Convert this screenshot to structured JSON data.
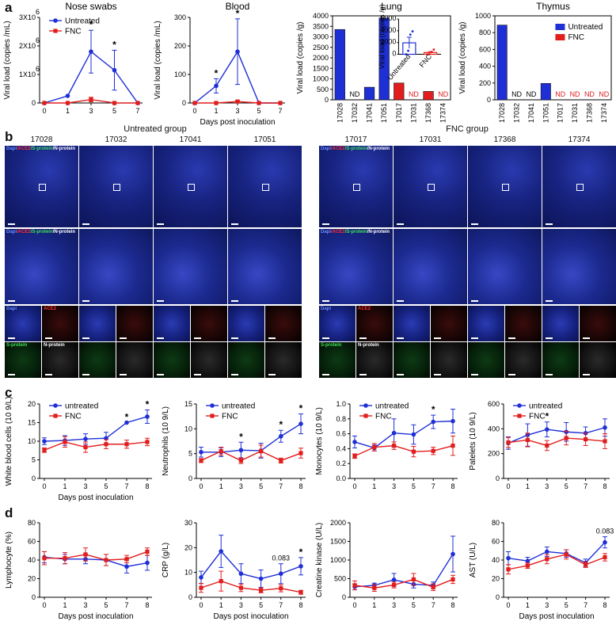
{
  "panels": {
    "a": "a",
    "b": "b",
    "c": "c",
    "d": "d"
  },
  "colors": {
    "untreated": "#1f2fd6",
    "fnc": "#e11d1d"
  },
  "chart_data": [
    {
      "id": "nose",
      "type": "line",
      "title": "Nose swabs",
      "ylabel": "Viral load (copies /mL)",
      "xlabel": "Days post inoculation",
      "x": [
        0,
        1,
        3,
        5,
        7
      ],
      "ylim": [
        0,
        3000000
      ],
      "yticks": [
        0,
        1000000,
        2000000,
        3000000
      ],
      "ytick_labels": [
        "0",
        "1X10",
        "2X10",
        "3X10"
      ],
      "ytick_exp": "6",
      "show_xlabel": false,
      "series": [
        {
          "name": "Untreated",
          "color": "#1f2fd6",
          "marker": "circle",
          "values": [
            0,
            250000,
            1800000,
            1150000,
            0
          ],
          "err": [
            0,
            0,
            750000,
            700000,
            0
          ]
        },
        {
          "name": "FNC",
          "color": "#e11d1d",
          "marker": "square",
          "values": [
            0,
            0,
            120000,
            0,
            0
          ],
          "err": [
            0,
            0,
            80000,
            0,
            0
          ]
        }
      ],
      "stars": [
        3,
        5
      ],
      "legend": [
        "Untreated",
        "FNC"
      ]
    },
    {
      "id": "blood",
      "type": "line",
      "title": "Blood",
      "ylabel": "Viral load (copies /mL)",
      "xlabel": "Days post inoculation",
      "x": [
        0,
        1,
        3,
        5,
        7
      ],
      "ylim": [
        0,
        300
      ],
      "yticks": [
        0,
        100,
        200,
        300
      ],
      "ytick_labels": [
        "0",
        "100",
        "200",
        "300"
      ],
      "show_xlabel": true,
      "series": [
        {
          "name": "Untreated",
          "color": "#1f2fd6",
          "marker": "circle",
          "values": [
            0,
            60,
            180,
            0,
            0
          ],
          "err": [
            0,
            25,
            115,
            0,
            0
          ]
        },
        {
          "name": "FNC",
          "color": "#e11d1d",
          "marker": "square",
          "values": [
            0,
            0,
            5,
            0,
            0
          ],
          "err": [
            0,
            0,
            4,
            0,
            0
          ]
        }
      ],
      "stars": [
        1,
        3
      ]
    },
    {
      "id": "lung",
      "type": "bar",
      "title": "Lung",
      "ylabel": "Viral load (copies /g)",
      "categories": [
        "17028",
        "17032",
        "17041",
        "17051",
        "17017",
        "17031",
        "17368",
        "17374"
      ],
      "values": [
        3350,
        0,
        600,
        3900,
        800,
        0,
        400,
        0
      ],
      "nd": [
        false,
        true,
        false,
        false,
        false,
        true,
        false,
        true
      ],
      "nd_label": "ND",
      "group": [
        "u",
        "u",
        "u",
        "u",
        "f",
        "f",
        "f",
        "f"
      ],
      "ylim": [
        0,
        4000
      ],
      "yticks": [
        0,
        500,
        1000,
        1500,
        2000,
        2500,
        3000,
        3500,
        4000
      ],
      "inset": {
        "ylabel": "Viral load (copies /g)",
        "categories": [
          "Untreated",
          "FNC"
        ],
        "values": [
          1950,
          300
        ],
        "err": [
          950,
          150
        ],
        "ylim": [
          0,
          6000
        ],
        "yticks": [
          0,
          2000,
          4000,
          6000
        ],
        "points_u": [
          0,
          600,
          3350,
          3900
        ],
        "points_f": [
          0,
          0,
          400,
          800
        ]
      }
    },
    {
      "id": "thymus",
      "type": "bar",
      "title": "Thymus",
      "ylabel": "Viral load (copies /g)",
      "categories": [
        "17028",
        "17032",
        "17041",
        "17051",
        "17017",
        "17031",
        "17368",
        "17374"
      ],
      "values": [
        890,
        0,
        0,
        195,
        0,
        0,
        0,
        0
      ],
      "nd": [
        false,
        true,
        true,
        false,
        true,
        true,
        true,
        true
      ],
      "nd_label": "ND",
      "group": [
        "u",
        "u",
        "u",
        "u",
        "f",
        "f",
        "f",
        "f"
      ],
      "ylim": [
        0,
        1000
      ],
      "yticks": [
        0,
        200,
        400,
        600,
        800,
        1000
      ],
      "legend": [
        "Untreated",
        "FNC"
      ]
    },
    {
      "id": "wbc",
      "type": "line",
      "ylabel": "White blood cells (10 9/L)",
      "xlabel": "Days post inoculation",
      "show_xlabel": true,
      "x": [
        0,
        1,
        3,
        5,
        7,
        8
      ],
      "ylim": [
        0,
        20
      ],
      "yticks": [
        0,
        5,
        10,
        15,
        20
      ],
      "series": [
        {
          "name": "untreated",
          "color": "#1f2fd6",
          "marker": "circle",
          "values": [
            10,
            10.2,
            10.6,
            10.8,
            15,
            16.6
          ],
          "err": [
            0.9,
            1.3,
            1.4,
            1.6,
            0,
            1.8
          ]
        },
        {
          "name": "FNC",
          "color": "#e11d1d",
          "marker": "square",
          "values": [
            7.6,
            9.8,
            8.4,
            9.2,
            9.2,
            9.8
          ],
          "err": [
            0.6,
            1.4,
            1.4,
            1.2,
            1.1,
            1
          ]
        }
      ],
      "stars": [
        7,
        8
      ],
      "legend": [
        "untreated",
        "FNC"
      ]
    },
    {
      "id": "neu",
      "type": "line",
      "ylabel": "Neutrophils (10 9/L)",
      "xlabel": "Days post inoculation",
      "show_xlabel": false,
      "x": [
        0,
        1,
        3,
        5,
        7,
        8
      ],
      "ylim": [
        0,
        15
      ],
      "yticks": [
        0,
        5,
        10,
        15
      ],
      "series": [
        {
          "name": "untreated",
          "color": "#1f2fd6",
          "marker": "circle",
          "values": [
            5.3,
            5.3,
            5.7,
            5.6,
            8.5,
            11
          ],
          "err": [
            1,
            0.9,
            1.6,
            1.5,
            1.2,
            2
          ]
        },
        {
          "name": "FNC",
          "color": "#e11d1d",
          "marker": "square",
          "values": [
            3.6,
            5.5,
            3.6,
            5.5,
            3.6,
            5.1
          ],
          "err": [
            0.4,
            0.8,
            0.6,
            1.2,
            0.5,
            1
          ]
        }
      ],
      "stars": [
        3,
        7,
        8
      ],
      "legend": [
        "untreated",
        "FNC"
      ]
    },
    {
      "id": "mono",
      "type": "line",
      "ylabel": "Monocytes (10 9/L)",
      "xlabel": "Days post inoculation",
      "show_xlabel": false,
      "x": [
        0,
        1,
        3,
        5,
        7,
        8
      ],
      "ylim": [
        0,
        1.0
      ],
      "yticks": [
        0,
        0.2,
        0.4,
        0.6,
        0.8,
        1.0
      ],
      "ytick_labels": [
        "0.0",
        "0.2",
        "0.4",
        "0.6",
        "0.8",
        "1.0"
      ],
      "series": [
        {
          "name": "untreated",
          "color": "#1f2fd6",
          "marker": "circle",
          "values": [
            0.49,
            0.41,
            0.61,
            0.59,
            0.76,
            0.77
          ],
          "err": [
            0.08,
            0.04,
            0.19,
            0.13,
            0.09,
            0.16
          ]
        },
        {
          "name": "FNC",
          "color": "#e11d1d",
          "marker": "square",
          "values": [
            0.3,
            0.42,
            0.44,
            0.36,
            0.37,
            0.44
          ],
          "err": [
            0.03,
            0.05,
            0.05,
            0.07,
            0.05,
            0.13
          ]
        }
      ],
      "stars": [
        7
      ],
      "legend": [
        "untreated",
        "FNC"
      ]
    },
    {
      "id": "plt",
      "type": "line",
      "ylabel": "Patelets (10 9/L)",
      "xlabel": "Days post inoculation",
      "show_xlabel": false,
      "x": [
        0,
        1,
        3,
        5,
        7,
        8
      ],
      "ylim": [
        0,
        600
      ],
      "yticks": [
        0,
        200,
        400,
        600
      ],
      "series": [
        {
          "name": "untreated",
          "color": "#1f2fd6",
          "marker": "circle",
          "values": [
            285,
            350,
            395,
            375,
            365,
            410
          ],
          "err": [
            50,
            90,
            60,
            75,
            50,
            70
          ]
        },
        {
          "name": "FNC",
          "color": "#e11d1d",
          "marker": "square",
          "values": [
            290,
            310,
            265,
            325,
            315,
            300
          ],
          "err": [
            40,
            55,
            40,
            55,
            50,
            60
          ]
        }
      ],
      "stars": [
        3
      ],
      "legend": [
        "untreated",
        "FNC"
      ]
    },
    {
      "id": "lym",
      "type": "line",
      "ylabel": "Lymphocyte (%)",
      "xlabel": "Days post inoculation",
      "show_xlabel": true,
      "x": [
        0,
        1,
        3,
        5,
        7,
        8
      ],
      "ylim": [
        0,
        80
      ],
      "yticks": [
        0,
        20,
        40,
        60,
        80
      ],
      "series": [
        {
          "name": "untreated",
          "color": "#1f2fd6",
          "marker": "circle",
          "values": [
            43,
            41,
            41,
            40,
            33,
            37
          ],
          "err": [
            6,
            5,
            5,
            6,
            7,
            8
          ]
        },
        {
          "name": "FNC",
          "color": "#e11d1d",
          "marker": "square",
          "values": [
            42,
            42,
            46,
            40,
            41,
            49
          ],
          "err": [
            7,
            6,
            7,
            6,
            4,
            4
          ]
        }
      ],
      "stars": []
    },
    {
      "id": "crp",
      "type": "line",
      "ylabel": "CRP (g/L)",
      "xlabel": "Days post inoculation",
      "show_xlabel": true,
      "x": [
        0,
        1,
        3,
        5,
        7,
        8
      ],
      "ylim": [
        0,
        30
      ],
      "yticks": [
        0,
        10,
        20,
        30
      ],
      "series": [
        {
          "name": "untreated",
          "color": "#1f2fd6",
          "marker": "circle",
          "values": [
            8,
            18.5,
            9.5,
            7.5,
            9.5,
            12.5
          ],
          "err": [
            2.5,
            6.5,
            4,
            3.5,
            4,
            3.5
          ]
        },
        {
          "name": "FNC",
          "color": "#e11d1d",
          "marker": "square",
          "values": [
            3.8,
            6.5,
            3.8,
            2.8,
            3.6,
            2
          ],
          "err": [
            1.8,
            4,
            1.5,
            1,
            1.4,
            0.8
          ]
        }
      ],
      "stars": [
        8
      ],
      "annotation": {
        "x": 7,
        "text": "0.083"
      }
    },
    {
      "id": "ck",
      "type": "line",
      "ylabel": "Creatine kinase (U/L)",
      "xlabel": "Days post inoculation",
      "show_xlabel": false,
      "x": [
        0,
        1,
        3,
        5,
        7,
        8
      ],
      "ylim": [
        0,
        2000
      ],
      "yticks": [
        0,
        500,
        1000,
        1500,
        2000
      ],
      "series": [
        {
          "name": "untreated",
          "color": "#1f2fd6",
          "marker": "circle",
          "values": [
            280,
            320,
            470,
            350,
            320,
            1160
          ],
          "err": [
            80,
            60,
            170,
            100,
            90,
            480
          ]
        },
        {
          "name": "FNC",
          "color": "#e11d1d",
          "marker": "square",
          "values": [
            320,
            250,
            330,
            480,
            270,
            480
          ],
          "err": [
            120,
            90,
            80,
            160,
            90,
            110
          ]
        }
      ],
      "stars": []
    },
    {
      "id": "ast",
      "type": "line",
      "ylabel": "AST (U/L)",
      "xlabel": "Days post inoculation",
      "show_xlabel": true,
      "x": [
        0,
        1,
        3,
        5,
        7,
        8
      ],
      "ylim": [
        0,
        80
      ],
      "yticks": [
        0,
        20,
        40,
        60,
        80
      ],
      "series": [
        {
          "name": "untreated",
          "color": "#1f2fd6",
          "marker": "circle",
          "values": [
            42,
            39,
            49,
            47,
            37,
            59
          ],
          "err": [
            7,
            4,
            5,
            4,
            4,
            6
          ]
        },
        {
          "name": "FNC",
          "color": "#e11d1d",
          "marker": "square",
          "values": [
            30,
            34,
            41,
            46,
            35,
            43
          ],
          "err": [
            5,
            3,
            5,
            5,
            3,
            4
          ]
        }
      ],
      "stars": [],
      "annotation": {
        "x": 8,
        "text": "0.083"
      }
    }
  ],
  "microscopy": {
    "untreated_group": "Untreated group",
    "fnc_group": "FNC group",
    "untreated_ids": [
      "17028",
      "17032",
      "17041",
      "17051"
    ],
    "fnc_ids": [
      "17017",
      "17031",
      "17368",
      "17374"
    ],
    "label_dapi": "Dapi",
    "label_ace2": "ACE2",
    "label_s": "S-protein",
    "label_n": "N-protein"
  }
}
